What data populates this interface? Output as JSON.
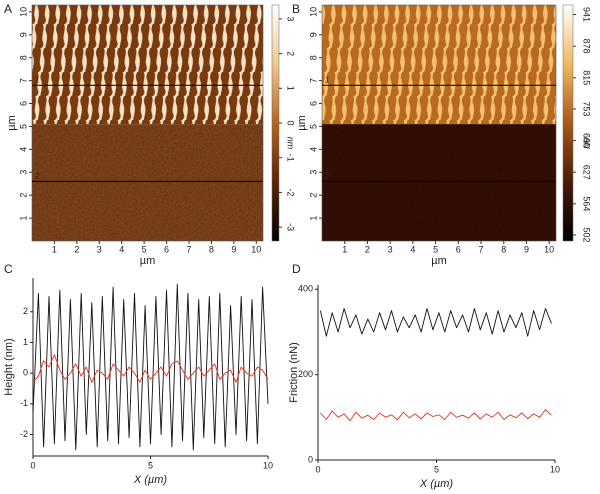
{
  "chart_data": [
    {
      "type": "image",
      "panel": "A",
      "xlabel": "µm",
      "ylabel": "µm",
      "xlim": [
        0,
        10.3
      ],
      "ylim": [
        0,
        10.3
      ],
      "xticks": [
        1,
        2,
        3,
        4,
        5,
        6,
        7,
        8,
        9,
        10
      ],
      "yticks": [
        1,
        2,
        3,
        4,
        5,
        6,
        7,
        8,
        9,
        10
      ],
      "pattern_boundary": 5.1,
      "top_colors": [
        "#f6e2c4",
        "#7a3a10"
      ],
      "bottom_color": "#8e4a1e",
      "profiles": [
        {
          "label": "1",
          "y": 6.8
        },
        {
          "label": "2",
          "y": 2.6
        }
      ],
      "colorbar_label": "nm",
      "colorbar_lim": [
        -3.4,
        3.4
      ],
      "colorbar_ticks": [
        -3,
        -2,
        -1,
        0,
        1,
        2,
        3
      ],
      "colorbar_colors": [
        "#000000",
        "#5a2406",
        "#b8641e",
        "#f0c890",
        "#ffffff"
      ]
    },
    {
      "type": "image",
      "panel": "B",
      "xlabel": "µm",
      "ylabel": "µm",
      "xlim": [
        0,
        10.3
      ],
      "ylim": [
        0,
        10.3
      ],
      "xticks": [
        1,
        2,
        3,
        4,
        5,
        6,
        7,
        8,
        9,
        10
      ],
      "yticks": [
        1,
        2,
        3,
        4,
        5,
        6,
        7,
        8,
        9,
        10
      ],
      "pattern_boundary": 5.1,
      "top_colors": [
        "#f4c070",
        "#b86a20"
      ],
      "bottom_color": "#3c1006",
      "profiles": [
        {
          "label": "1",
          "y": 6.8
        },
        {
          "label": "2",
          "y": 2.6
        }
      ],
      "colorbar_label": "nN",
      "colorbar_lim": [
        490,
        960
      ],
      "colorbar_ticks": [
        502,
        564,
        627,
        690,
        753,
        815,
        878,
        941
      ],
      "colorbar_colors": [
        "#000000",
        "#4a1a06",
        "#a8581a",
        "#f0b860",
        "#ffffff"
      ]
    },
    {
      "type": "line",
      "panel": "C",
      "xlabel": "X (µm)",
      "ylabel": "Height (nm)",
      "xlim": [
        0,
        10
      ],
      "ylim": [
        -2.7,
        3.1
      ],
      "xticks": [
        0,
        5,
        10
      ],
      "yticks": [
        -2,
        -1,
        0,
        1,
        2
      ],
      "x": [
        0,
        0.23,
        0.45,
        0.68,
        0.91,
        1.14,
        1.36,
        1.59,
        1.82,
        2.05,
        2.27,
        2.5,
        2.73,
        2.95,
        3.18,
        3.41,
        3.64,
        3.86,
        4.09,
        4.32,
        4.55,
        4.77,
        5,
        5.23,
        5.45,
        5.68,
        5.91,
        6.14,
        6.36,
        6.59,
        6.82,
        7.05,
        7.27,
        7.5,
        7.73,
        7.95,
        8.18,
        8.41,
        8.64,
        8.86,
        9.09,
        9.32,
        9.55,
        9.77,
        10
      ],
      "series": [
        {
          "color": "#111111",
          "values": [
            -1.3,
            2.6,
            -2.4,
            2.5,
            -2.3,
            2.7,
            -2.2,
            2.4,
            -2.5,
            2.6,
            -2.0,
            2.3,
            -2.4,
            2.5,
            -2.2,
            2.8,
            -2.3,
            2.4,
            -2.1,
            2.6,
            -2.4,
            2.2,
            -2.3,
            2.5,
            -2.0,
            2.7,
            -2.4,
            2.9,
            -2.2,
            2.6,
            -2.5,
            2.4,
            -2.1,
            2.5,
            -2.3,
            2.6,
            -2.4,
            2.2,
            -2.0,
            2.5,
            -2.2,
            2.4,
            -2.3,
            2.8,
            -1.0
          ]
        },
        {
          "color": "#e8321e",
          "values": [
            -0.3,
            -0.1,
            0.4,
            0.2,
            0.6,
            0.1,
            -0.2,
            0.0,
            0.3,
            -0.1,
            0.2,
            -0.3,
            0.1,
            0.0,
            -0.2,
            0.3,
            0.1,
            -0.1,
            0.2,
            0.0,
            -0.3,
            0.1,
            -0.2,
            0.0,
            0.2,
            -0.1,
            0.3,
            0.4,
            0.1,
            -0.2,
            0.0,
            0.2,
            -0.1,
            0.1,
            0.3,
            -0.2,
            0.0,
            0.1,
            -0.3,
            0.2,
            0.0,
            -0.1,
            0.2,
            0.1,
            -0.2
          ]
        }
      ]
    },
    {
      "type": "line",
      "panel": "D",
      "xlabel": "X (µm)",
      "ylabel": "Friction (nN)",
      "xlim": [
        0,
        10
      ],
      "ylim": [
        0,
        410
      ],
      "xticks": [
        0,
        5,
        10
      ],
      "yticks": [
        0,
        200,
        400
      ],
      "x": [
        0.1,
        0.35,
        0.6,
        0.85,
        1.1,
        1.35,
        1.6,
        1.85,
        2.1,
        2.35,
        2.6,
        2.85,
        3.1,
        3.35,
        3.6,
        3.85,
        4.1,
        4.35,
        4.6,
        4.85,
        5.1,
        5.35,
        5.6,
        5.85,
        6.1,
        6.35,
        6.6,
        6.85,
        7.1,
        7.35,
        7.6,
        7.85,
        8.1,
        8.35,
        8.6,
        8.85,
        9.1,
        9.35,
        9.6,
        9.85
      ],
      "series": [
        {
          "color": "#111111",
          "values": [
            350,
            290,
            345,
            300,
            355,
            310,
            340,
            295,
            330,
            300,
            345,
            305,
            350,
            300,
            335,
            310,
            340,
            300,
            355,
            305,
            345,
            300,
            350,
            310,
            340,
            300,
            355,
            305,
            345,
            295,
            350,
            300,
            340,
            310,
            345,
            290,
            350,
            305,
            355,
            320
          ]
        },
        {
          "color": "#e8321e",
          "values": [
            110,
            95,
            115,
            100,
            108,
            92,
            112,
            98,
            105,
            95,
            110,
            100,
            106,
            94,
            112,
            99,
            108,
            96,
            110,
            102,
            106,
            95,
            112,
            100,
            105,
            98,
            110,
            96,
            108,
            100,
            112,
            95,
            106,
            99,
            110,
            97,
            108,
            100,
            118,
            105
          ]
        }
      ]
    }
  ]
}
